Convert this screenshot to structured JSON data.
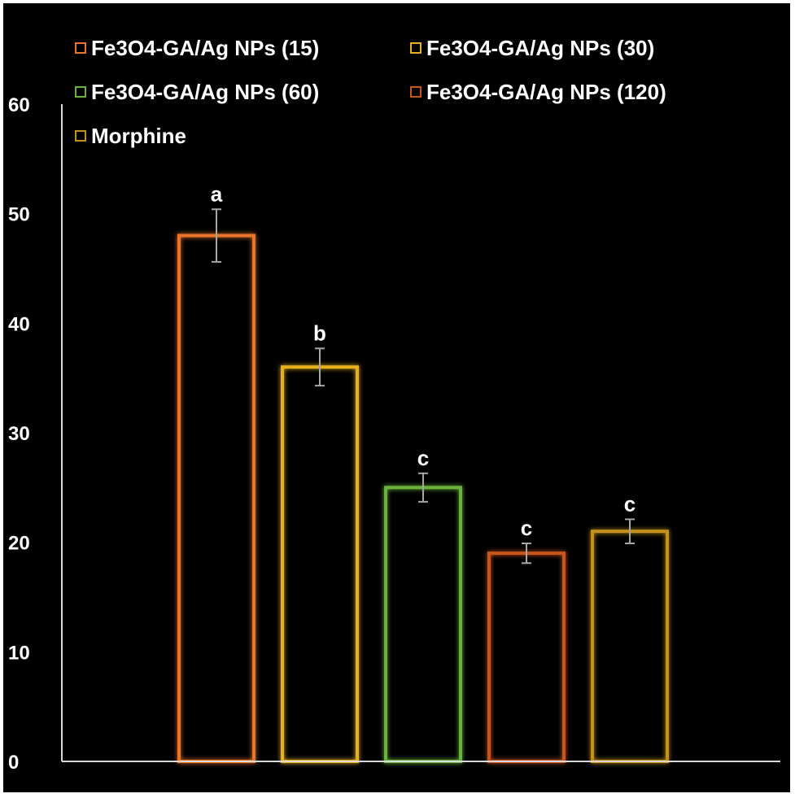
{
  "chart_data": {
    "type": "bar",
    "title": "",
    "xlabel": "",
    "ylabel": "",
    "ylim": [
      0,
      60
    ],
    "yticks": [
      "0",
      "10",
      "20",
      "30",
      "40",
      "50",
      "60"
    ],
    "grid": false,
    "legend_position": "top-left",
    "series": [
      {
        "name": "Fe3O4-GA/Ag NPs (15)",
        "value": 48.0,
        "error": 2.4,
        "label": "a",
        "color": "#E9742A"
      },
      {
        "name": "Fe3O4-GA/Ag NPs (30)",
        "value": 36.0,
        "error": 1.7,
        "label": "b",
        "color": "#E6B11C"
      },
      {
        "name": "Fe3O4-GA/Ag NPs (60)",
        "value": 25.0,
        "error": 1.3,
        "label": "c",
        "color": "#6BB13C"
      },
      {
        "name": "Fe3O4-GA/Ag NPs (120)",
        "value": 19.0,
        "error": 0.9,
        "label": "c",
        "color": "#C8561C"
      },
      {
        "name": "Morphine",
        "value": 21.0,
        "error": 1.1,
        "label": "c",
        "color": "#C4921A"
      }
    ]
  }
}
